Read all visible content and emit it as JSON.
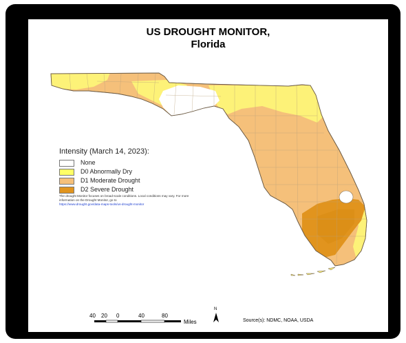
{
  "map": {
    "title_line1": "US DROUGHT MONITOR,",
    "title_line2": "Florida",
    "legend": {
      "title": "Intensity (March 14, 2023):",
      "items": [
        {
          "label": "None",
          "color": "#ffffff"
        },
        {
          "label": "D0  Abnormally Dry",
          "color": "#ffff66"
        },
        {
          "label": "D1  Moderate Drought",
          "color": "#f5c07a"
        },
        {
          "label": "D2 Severe Drought",
          "color": "#e1941e"
        }
      ]
    },
    "note": "The drought Monitor focuses on broad-scale conditions. Local conditions may vary. For more information on the Drought Monitor, go to",
    "note_link": "https://www.drought.gov/data-maps-tools/us-drought-monitor",
    "scale_bar": {
      "ticks": [
        "40",
        "20",
        "0",
        "40",
        "80"
      ],
      "units": "Miles"
    },
    "north_arrow": "N",
    "source": "Source(s): NDMC, NOAA, USDA",
    "colors": {
      "frame": "#000000",
      "none": "#ffffff",
      "d0": "#fdf278",
      "d1": "#f5c07a",
      "d2": "#e1941e",
      "d2_dark": "#d98a12",
      "boundary": "#b9a07a"
    }
  }
}
